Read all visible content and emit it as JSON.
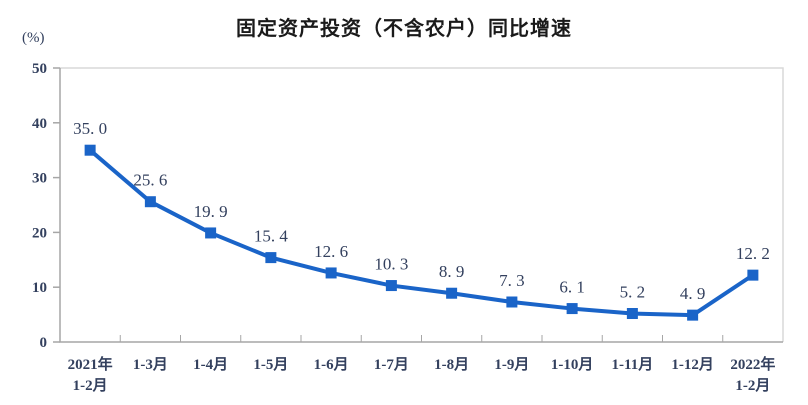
{
  "chart_data": {
    "type": "line",
    "title": "固定资产投资（不含农户）同比增速",
    "unit_label": "(%)",
    "categories": [
      "2021年\n1-2月",
      "1-3月",
      "1-4月",
      "1-5月",
      "1-6月",
      "1-7月",
      "1-8月",
      "1-9月",
      "1-10月",
      "1-11月",
      "1-12月",
      "2022年\n1-2月"
    ],
    "values": [
      35.0,
      25.6,
      19.9,
      15.4,
      12.6,
      10.3,
      8.9,
      7.3,
      6.1,
      5.2,
      4.9,
      12.2
    ],
    "data_labels": [
      "35. 0",
      "25. 6",
      "19. 9",
      "15. 4",
      "12. 6",
      "10. 3",
      "8. 9",
      "7. 3",
      "6. 1",
      "5. 2",
      "4. 9",
      "12. 2"
    ],
    "ylim": [
      0,
      50
    ],
    "y_ticks": [
      0,
      10,
      20,
      30,
      40,
      50
    ],
    "grid": false,
    "legend": "none",
    "series_name": "同比增速",
    "colors": {
      "line": "#1a64c8",
      "labels": "#33405e",
      "title": "#1a1a1a",
      "axis": "#a6a6a6",
      "border_light": "#d9d9d9",
      "background": "#ffffff"
    }
  }
}
